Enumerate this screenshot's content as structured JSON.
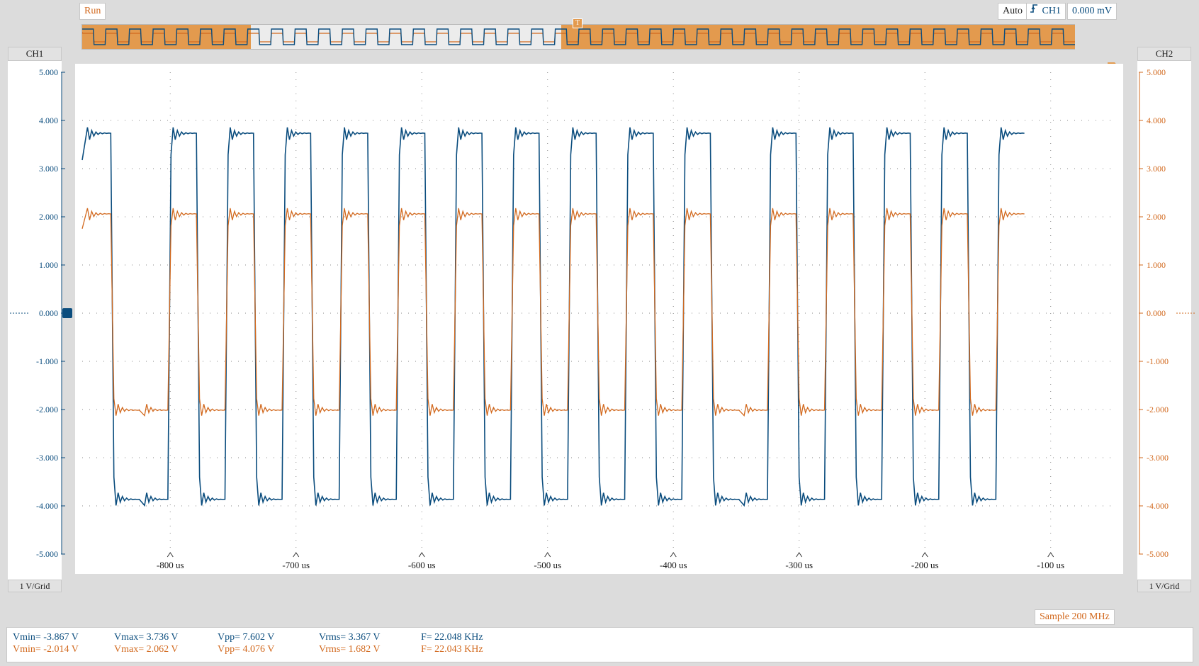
{
  "toolbar": {
    "run_label": "Run",
    "trigger_mode": "Auto",
    "trigger_source": "CH1",
    "trigger_level": "0.000 mV"
  },
  "ch1": {
    "label": "CH1",
    "scale": "1 V/Grid",
    "color": "#0b4d7e",
    "ticks": [
      "5.000",
      "4.000",
      "3.000",
      "2.000",
      "1.000",
      "0.000",
      "-1.000",
      "-2.000",
      "-3.000",
      "-4.000",
      "-5.000"
    ]
  },
  "ch2": {
    "label": "CH2",
    "scale": "1 V/Grid",
    "color": "#d2691e",
    "ticks": [
      "5.000",
      "4.000",
      "3.000",
      "2.000",
      "1.000",
      "0.000",
      "-1.000",
      "-2.000",
      "-3.000",
      "-4.000",
      "-5.000"
    ]
  },
  "time_axis": {
    "labels": [
      "-800 us",
      "-700 us",
      "-600 us",
      "-500 us",
      "-400 us",
      "-300 us",
      "-200 us",
      "-100 us"
    ]
  },
  "sample_rate": "Sample 200 MHz",
  "measurements": {
    "ch1": {
      "vmin": "Vmin= -3.867 V",
      "vmax": "Vmax= 3.736 V",
      "vpp": "Vpp= 7.602 V",
      "vrms": "Vrms= 3.367 V",
      "freq": "F= 22.048 KHz"
    },
    "ch2": {
      "vmin": "Vmin= -2.014 V",
      "vmax": "Vmax= 2.062 V",
      "vpp": "Vpp= 4.076 V",
      "vrms": "Vrms= 1.682 V",
      "freq": "F= 22.043 KHz"
    }
  },
  "chart_data": {
    "type": "line",
    "x_unit": "us",
    "xlim": [
      -870,
      -48
    ],
    "ylim": [
      -5,
      5
    ],
    "grid": true,
    "series": [
      {
        "name": "CH1",
        "color": "#0b4d7e",
        "high": 3.736,
        "low": -3.867
      },
      {
        "name": "CH2",
        "color": "#d2691e",
        "high": 2.062,
        "low": -2.014
      }
    ],
    "level_sequence": [
      "high",
      "low",
      "low",
      "high",
      "low",
      "high",
      "low",
      "high",
      "low",
      "high",
      "low",
      "high",
      "low",
      "high",
      "low",
      "high",
      "low",
      "high",
      "low",
      "high",
      "low",
      "high",
      "low",
      "low",
      "high",
      "low",
      "high",
      "low",
      "high",
      "low",
      "high",
      "low",
      "high"
    ],
    "half_period_us": 22.7
  }
}
